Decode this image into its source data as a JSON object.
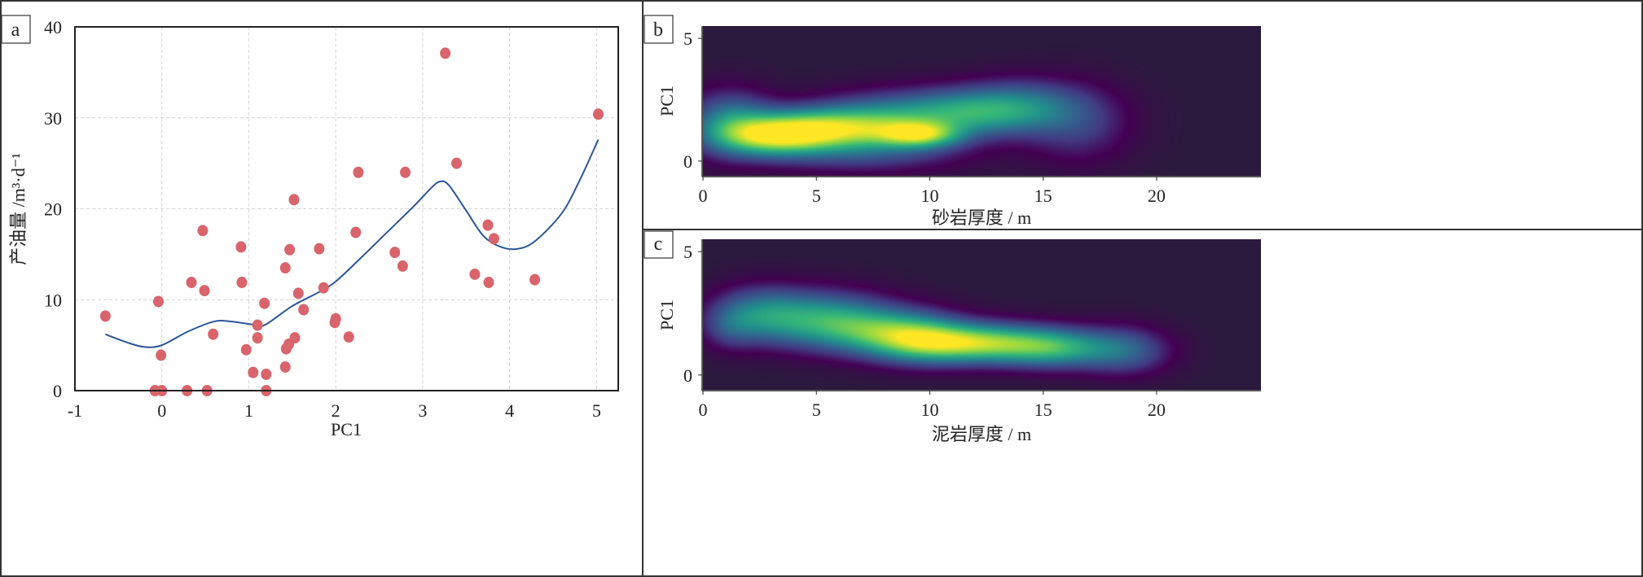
{
  "chart_data": [
    {
      "panel": "a",
      "type": "scatter",
      "xlabel": "PC1",
      "ylabel": "产油量 /m³·d⁻¹",
      "xlim": [
        -1,
        5.25
      ],
      "ylim": [
        0,
        40
      ],
      "xticks": [
        "-1",
        "0",
        "1",
        "2",
        "3",
        "4",
        "5"
      ],
      "yticks": [
        "0",
        "10",
        "20",
        "30",
        "40"
      ],
      "grid": true,
      "point_color": "#d9646b",
      "line_color": "#2c5596",
      "points": [
        [
          -0.65,
          8.2
        ],
        [
          -0.04,
          9.8
        ],
        [
          -0.01,
          3.9
        ],
        [
          -0.08,
          0
        ],
        [
          0,
          0
        ],
        [
          0.34,
          11.9
        ],
        [
          0.47,
          17.6
        ],
        [
          0.49,
          11.0
        ],
        [
          0.29,
          0
        ],
        [
          0.52,
          0
        ],
        [
          0.59,
          6.2
        ],
        [
          0.91,
          15.8
        ],
        [
          0.92,
          11.9
        ],
        [
          0.97,
          4.5
        ],
        [
          1.05,
          2.0
        ],
        [
          1.1,
          7.2
        ],
        [
          1.1,
          5.8
        ],
        [
          1.18,
          9.6
        ],
        [
          1.2,
          1.8
        ],
        [
          1.2,
          0
        ],
        [
          1.52,
          21.0
        ],
        [
          1.47,
          15.5
        ],
        [
          1.42,
          13.5
        ],
        [
          1.43,
          4.6
        ],
        [
          1.46,
          5.1
        ],
        [
          1.42,
          2.6
        ],
        [
          1.53,
          5.8
        ],
        [
          1.57,
          10.7
        ],
        [
          1.63,
          8.9
        ],
        [
          1.81,
          15.6
        ],
        [
          1.86,
          11.3
        ],
        [
          1.99,
          7.5
        ],
        [
          2.0,
          7.9
        ],
        [
          2.15,
          5.9
        ],
        [
          2.23,
          17.4
        ],
        [
          2.26,
          24.0
        ],
        [
          2.68,
          15.2
        ],
        [
          2.77,
          13.7
        ],
        [
          2.8,
          24.0
        ],
        [
          3.26,
          37.1
        ],
        [
          3.39,
          25.0
        ],
        [
          3.6,
          12.8
        ],
        [
          3.75,
          18.2
        ],
        [
          3.76,
          11.9
        ],
        [
          3.82,
          16.7
        ],
        [
          4.29,
          12.2
        ],
        [
          5.02,
          30.4
        ]
      ],
      "fit_curve": [
        [
          -0.65,
          6.2
        ],
        [
          -0.4,
          5.3
        ],
        [
          -0.2,
          4.8
        ],
        [
          0,
          5.0
        ],
        [
          0.3,
          6.5
        ],
        [
          0.6,
          7.6
        ],
        [
          0.8,
          7.6
        ],
        [
          1.1,
          7.2
        ],
        [
          1.2,
          7.3
        ],
        [
          1.5,
          9.3
        ],
        [
          1.8,
          10.8
        ],
        [
          2.0,
          12.0
        ],
        [
          2.3,
          14.7
        ],
        [
          2.6,
          17.5
        ],
        [
          2.9,
          20.3
        ],
        [
          3.1,
          22.3
        ],
        [
          3.2,
          23.0
        ],
        [
          3.3,
          22.6
        ],
        [
          3.5,
          19.8
        ],
        [
          3.7,
          17.0
        ],
        [
          3.9,
          15.8
        ],
        [
          4.1,
          15.6
        ],
        [
          4.3,
          16.5
        ],
        [
          4.6,
          19.5
        ],
        [
          4.8,
          23.0
        ],
        [
          5.02,
          27.6
        ]
      ]
    },
    {
      "panel": "b",
      "type": "heatmap",
      "xlabel": "砂岩厚度 / m",
      "ylabel": "PC1",
      "xlim": [
        0,
        24.6
      ],
      "ylim": [
        -0.6,
        5.5
      ],
      "xticks": [
        "0",
        "5",
        "10",
        "15",
        "20"
      ],
      "yticks": [
        "0",
        "5"
      ],
      "colormap": "viridis",
      "density_peaks": [
        {
          "x": 5,
          "y": 1.3,
          "w": 1.0,
          "sx": 2.2,
          "sy": 0.55
        },
        {
          "x": 3,
          "y": 1.0,
          "w": 0.75,
          "sx": 1.6,
          "sy": 0.5
        },
        {
          "x": 9.5,
          "y": 1.1,
          "w": 0.85,
          "sx": 1.2,
          "sy": 0.35
        },
        {
          "x": 8,
          "y": 1.6,
          "w": 0.5,
          "sx": 2.0,
          "sy": 0.7
        },
        {
          "x": 11.5,
          "y": 2.0,
          "w": 0.55,
          "sx": 2.0,
          "sy": 0.6
        },
        {
          "x": 14,
          "y": 2.2,
          "w": 0.4,
          "sx": 1.8,
          "sy": 0.7
        },
        {
          "x": 1.2,
          "y": 1.6,
          "w": 0.45,
          "sx": 1.2,
          "sy": 0.8
        },
        {
          "x": 16.5,
          "y": 1.5,
          "w": 0.2,
          "sx": 1.5,
          "sy": 1.0
        },
        {
          "x": 7,
          "y": 0.3,
          "w": 0.2,
          "sx": 3.0,
          "sy": 0.5
        }
      ]
    },
    {
      "panel": "c",
      "type": "heatmap",
      "xlabel": "泥岩厚度 / m",
      "ylabel": "PC1",
      "xlim": [
        0,
        24.6
      ],
      "ylim": [
        -0.6,
        5.5
      ],
      "xticks": [
        "0",
        "5",
        "10",
        "15",
        "20"
      ],
      "yticks": [
        "0",
        "5"
      ],
      "colormap": "viridis",
      "density_peaks": [
        {
          "x": 12,
          "y": 1.3,
          "w": 1.0,
          "sx": 2.2,
          "sy": 0.5
        },
        {
          "x": 9.5,
          "y": 1.5,
          "w": 0.6,
          "sx": 1.5,
          "sy": 0.6
        },
        {
          "x": 5,
          "y": 2.3,
          "w": 0.6,
          "sx": 2.0,
          "sy": 0.7
        },
        {
          "x": 7.5,
          "y": 1.8,
          "w": 0.55,
          "sx": 1.8,
          "sy": 0.6
        },
        {
          "x": 15.5,
          "y": 1.1,
          "w": 0.6,
          "sx": 1.6,
          "sy": 0.5
        },
        {
          "x": 18.5,
          "y": 1.0,
          "w": 0.35,
          "sx": 1.3,
          "sy": 0.6
        },
        {
          "x": 2.5,
          "y": 2.5,
          "w": 0.35,
          "sx": 1.3,
          "sy": 0.7
        },
        {
          "x": 1.2,
          "y": 2.0,
          "w": 0.2,
          "sx": 0.8,
          "sy": 0.6
        }
      ]
    }
  ],
  "panels": {
    "a": "a",
    "b": "b",
    "c": "c"
  }
}
